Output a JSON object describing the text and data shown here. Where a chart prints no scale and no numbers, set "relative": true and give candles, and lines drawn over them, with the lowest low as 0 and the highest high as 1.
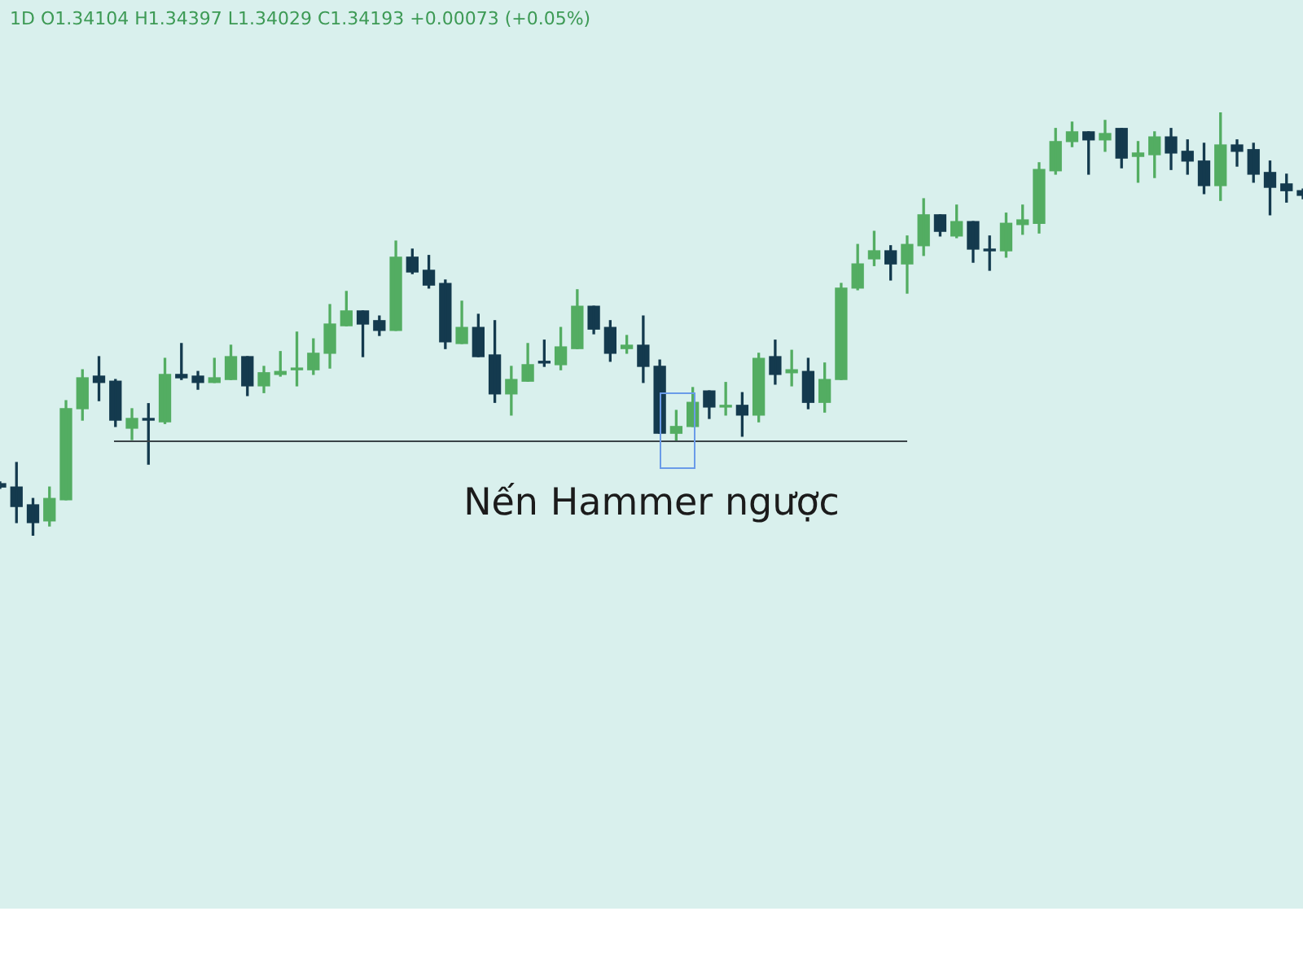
{
  "chart_data": {
    "type": "candlestick",
    "title": "1D  O1.34104  H1.34397  L1.34029  C1.34193  +0.00073 (+0.05%)",
    "relative": true,
    "categories": [
      null,
      null,
      null,
      null,
      null,
      null,
      null,
      null,
      null,
      null,
      null,
      null,
      null,
      null,
      null,
      null,
      null,
      null,
      null,
      null,
      null,
      null,
      null,
      null,
      null,
      null,
      null,
      null,
      null,
      null,
      null,
      null,
      null,
      null,
      null,
      null,
      null,
      null,
      null,
      null,
      null,
      null,
      null,
      null,
      null,
      null,
      null,
      null,
      null,
      null,
      null,
      null,
      null,
      null,
      null,
      null,
      null,
      null,
      null,
      null,
      null,
      null,
      null,
      null,
      null,
      null,
      null,
      null,
      null,
      null,
      null,
      null,
      null,
      null,
      null,
      null,
      null,
      null,
      null,
      null
    ],
    "ohlc": [
      [
        0.123,
        0.127,
        0.112,
        0.115
      ],
      [
        0.115,
        0.173,
        0.031,
        0.069
      ],
      [
        0.073,
        0.088,
        0,
        0.031
      ],
      [
        0.035,
        0.115,
        0.023,
        0.088
      ],
      [
        0.085,
        0.319,
        0.085,
        0.3
      ],
      [
        0.3,
        0.392,
        0.273,
        0.373
      ],
      [
        0.377,
        0.423,
        0.319,
        0.362
      ],
      [
        0.365,
        0.369,
        0.258,
        0.273
      ],
      [
        0.254,
        0.3,
        0.227,
        0.277
      ],
      [
        0.277,
        0.312,
        0.169,
        0.273
      ],
      [
        0.269,
        0.419,
        0.265,
        0.381
      ],
      [
        0.381,
        0.454,
        0.369,
        0.373
      ],
      [
        0.377,
        0.388,
        0.346,
        0.362
      ],
      [
        0.362,
        0.419,
        0.362,
        0.373
      ],
      [
        0.369,
        0.45,
        0.369,
        0.423
      ],
      [
        0.423,
        0.423,
        0.331,
        0.354
      ],
      [
        0.354,
        0.4,
        0.338,
        0.385
      ],
      [
        0.381,
        0.435,
        0.377,
        0.388
      ],
      [
        0.392,
        0.481,
        0.354,
        0.396
      ],
      [
        0.392,
        0.465,
        0.381,
        0.431
      ],
      [
        0.431,
        0.546,
        0.396,
        0.5
      ],
      [
        0.496,
        0.577,
        0.496,
        0.531
      ],
      [
        0.531,
        0.531,
        0.423,
        0.5
      ],
      [
        0.508,
        0.519,
        0.473,
        0.485
      ],
      [
        0.485,
        0.696,
        0.485,
        0.658
      ],
      [
        0.658,
        0.677,
        0.619,
        0.623
      ],
      [
        0.627,
        0.662,
        0.585,
        0.592
      ],
      [
        0.596,
        0.604,
        0.442,
        0.458
      ],
      [
        0.454,
        0.554,
        0.454,
        0.492
      ],
      [
        0.492,
        0.523,
        0.423,
        0.423
      ],
      [
        0.427,
        0.508,
        0.315,
        0.335
      ],
      [
        0.335,
        0.4,
        0.285,
        0.369
      ],
      [
        0.365,
        0.454,
        0.365,
        0.404
      ],
      [
        0.412,
        0.462,
        0.4,
        0.408
      ],
      [
        0.404,
        0.492,
        0.392,
        0.446
      ],
      [
        0.442,
        0.581,
        0.442,
        0.542
      ],
      [
        0.542,
        0.542,
        0.477,
        0.488
      ],
      [
        0.492,
        0.508,
        0.412,
        0.431
      ],
      [
        0.442,
        0.473,
        0.431,
        0.45
      ],
      [
        0.45,
        0.519,
        0.362,
        0.4
      ],
      [
        0.4,
        0.415,
        0.242,
        0.242
      ],
      [
        0.242,
        0.296,
        0.223,
        0.258
      ],
      [
        0.258,
        0.35,
        0.258,
        0.315
      ],
      [
        0.342,
        0.342,
        0.277,
        0.304
      ],
      [
        0.304,
        0.362,
        0.285,
        0.308
      ],
      [
        0.308,
        0.338,
        0.235,
        0.285
      ],
      [
        0.285,
        0.431,
        0.269,
        0.419
      ],
      [
        0.423,
        0.462,
        0.358,
        0.381
      ],
      [
        0.385,
        0.438,
        0.354,
        0.392
      ],
      [
        0.388,
        0.419,
        0.3,
        0.315
      ],
      [
        0.315,
        0.408,
        0.292,
        0.369
      ],
      [
        0.369,
        0.596,
        0.369,
        0.585
      ],
      [
        0.585,
        0.688,
        0.581,
        0.642
      ],
      [
        0.654,
        0.719,
        0.638,
        0.673
      ],
      [
        0.673,
        0.685,
        0.604,
        0.642
      ],
      [
        0.642,
        0.708,
        0.573,
        0.688
      ],
      [
        0.685,
        0.796,
        0.662,
        0.758
      ],
      [
        0.758,
        0.758,
        0.708,
        0.719
      ],
      [
        0.708,
        0.781,
        0.704,
        0.742
      ],
      [
        0.742,
        0.742,
        0.646,
        0.677
      ],
      [
        0.677,
        0.708,
        0.627,
        0.673
      ],
      [
        0.673,
        0.762,
        0.658,
        0.738
      ],
      [
        0.735,
        0.781,
        0.712,
        0.746
      ],
      [
        0.738,
        0.881,
        0.715,
        0.865
      ],
      [
        0.862,
        0.962,
        0.854,
        0.931
      ],
      [
        0.931,
        0.977,
        0.919,
        0.954
      ],
      [
        0.954,
        0.954,
        0.854,
        0.935
      ],
      [
        0.935,
        0.981,
        0.908,
        0.95
      ],
      [
        0.962,
        0.962,
        0.869,
        0.892
      ],
      [
        0.896,
        0.931,
        0.835,
        0.904
      ],
      [
        0.9,
        0.954,
        0.846,
        0.942
      ],
      [
        0.942,
        0.962,
        0.865,
        0.904
      ],
      [
        0.908,
        0.935,
        0.854,
        0.885
      ],
      [
        0.885,
        0.927,
        0.808,
        0.827
      ],
      [
        0.827,
        1,
        0.792,
        0.923
      ],
      [
        0.923,
        0.935,
        0.873,
        0.908
      ],
      [
        0.912,
        0.927,
        0.835,
        0.854
      ],
      [
        0.858,
        0.885,
        0.758,
        0.823
      ],
      [
        0.831,
        0.854,
        0.788,
        0.815
      ],
      [
        0.815,
        0.819,
        0.796,
        0.804
      ]
    ],
    "colors": [
      "#143a4e",
      "#143a4e",
      "#143a4e",
      "#53ad62",
      "#53ad62",
      "#53ad62",
      "#143a4e",
      "#143a4e",
      "#53ad62",
      "#143a4e",
      "#53ad62",
      "#143a4e",
      "#143a4e",
      "#53ad62",
      "#53ad62",
      "#143a4e",
      "#53ad62",
      "#53ad62",
      "#53ad62",
      "#53ad62",
      "#53ad62",
      "#53ad62",
      "#143a4e",
      "#143a4e",
      "#53ad62",
      "#143a4e",
      "#143a4e",
      "#143a4e",
      "#53ad62",
      "#143a4e",
      "#143a4e",
      "#53ad62",
      "#53ad62",
      "#143a4e",
      "#53ad62",
      "#53ad62",
      "#143a4e",
      "#143a4e",
      "#53ad62",
      "#143a4e",
      "#143a4e",
      "#53ad62",
      "#53ad62",
      "#143a4e",
      "#53ad62",
      "#143a4e",
      "#53ad62",
      "#143a4e",
      "#53ad62",
      "#143a4e",
      "#53ad62",
      "#53ad62",
      "#53ad62",
      "#53ad62",
      "#143a4e",
      "#53ad62",
      "#53ad62",
      "#143a4e",
      "#53ad62",
      "#143a4e",
      "#143a4e",
      "#53ad62",
      "#53ad62",
      "#53ad62",
      "#53ad62",
      "#53ad62",
      "#143a4e",
      "#53ad62",
      "#143a4e",
      "#53ad62",
      "#53ad62",
      "#143a4e",
      "#143a4e",
      "#143a4e",
      "#53ad62",
      "#143a4e",
      "#143a4e",
      "#143a4e",
      "#143a4e",
      "#143a4e"
    ],
    "ref_lines": [
      {
        "axis": "y",
        "value": 0.223,
        "color": "#3a4448"
      }
    ],
    "annotations": [
      "Nến Hammer ngược"
    ],
    "tick_labels": false,
    "legend": false
  }
}
